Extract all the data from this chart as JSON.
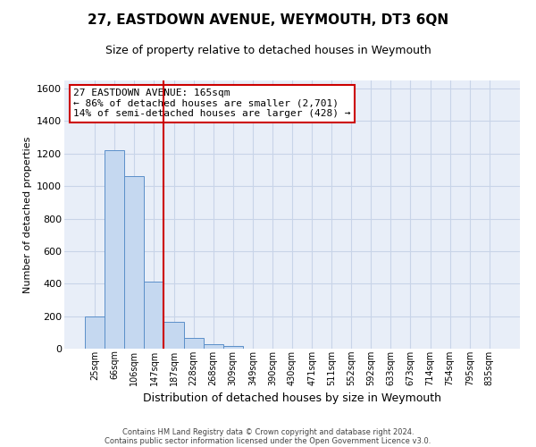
{
  "title": "27, EASTDOWN AVENUE, WEYMOUTH, DT3 6QN",
  "subtitle": "Size of property relative to detached houses in Weymouth",
  "xlabel": "Distribution of detached houses by size in Weymouth",
  "ylabel": "Number of detached properties",
  "footer1": "Contains HM Land Registry data © Crown copyright and database right 2024.",
  "footer2": "Contains public sector information licensed under the Open Government Licence v3.0.",
  "annotation_title": "27 EASTDOWN AVENUE: 165sqm",
  "annotation_line1": "← 86% of detached houses are smaller (2,701)",
  "annotation_line2": "14% of semi-detached houses are larger (428) →",
  "bar_color": "#c5d8f0",
  "bar_edge_color": "#5b8fc9",
  "marker_color": "#cc0000",
  "annotation_box_color": "#cc0000",
  "categories": [
    "25sqm",
    "66sqm",
    "106sqm",
    "147sqm",
    "187sqm",
    "228sqm",
    "268sqm",
    "309sqm",
    "349sqm",
    "390sqm",
    "430sqm",
    "471sqm",
    "511sqm",
    "552sqm",
    "592sqm",
    "633sqm",
    "673sqm",
    "714sqm",
    "754sqm",
    "795sqm",
    "835sqm"
  ],
  "values": [
    200,
    1220,
    1060,
    410,
    165,
    65,
    28,
    15,
    0,
    0,
    0,
    0,
    0,
    0,
    0,
    0,
    0,
    0,
    0,
    0,
    0
  ],
  "ylim": [
    0,
    1650
  ],
  "yticks": [
    0,
    200,
    400,
    600,
    800,
    1000,
    1200,
    1400,
    1600
  ],
  "grid_color": "#c8d4e8",
  "bg_color": "#e8eef8",
  "title_fontsize": 11,
  "subtitle_fontsize": 9,
  "ylabel_fontsize": 8,
  "xlabel_fontsize": 9,
  "tick_fontsize": 8,
  "xtick_fontsize": 7,
  "footer_fontsize": 6,
  "annotation_fontsize": 8
}
